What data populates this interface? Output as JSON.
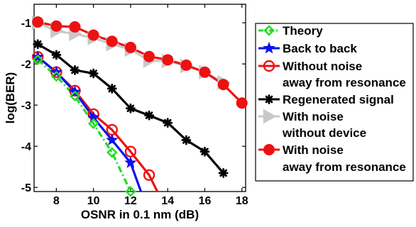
{
  "chart_data": {
    "type": "line",
    "title": "",
    "xlabel": "OSNR in 0.1 nm (dB)",
    "ylabel": "log(BER)",
    "xlim": [
      6.8,
      18.2
    ],
    "ylim": [
      -5.1,
      -0.55
    ],
    "xticks": [
      "8",
      "10",
      "12",
      "14",
      "16",
      "18"
    ],
    "yticks": [
      "-1",
      "-2",
      "-3",
      "-4",
      "-5"
    ],
    "grid": false,
    "legend_position": "right-outside",
    "series": [
      {
        "name": "Theory",
        "color": "#22dd22",
        "marker": "diamond",
        "line": "dashdot",
        "show_markers": true,
        "x": [
          7,
          8,
          9,
          10,
          11,
          12
        ],
        "y": [
          -1.9,
          -2.3,
          -2.78,
          -3.45,
          -4.15,
          -5.1
        ],
        "curve_x": [
          7,
          8,
          9,
          10,
          11,
          12
        ],
        "curve_y": [
          -1.9,
          -2.3,
          -2.78,
          -3.45,
          -4.15,
          -5.1
        ]
      },
      {
        "name": "Back to back",
        "color": "#1010ee",
        "marker": "star",
        "line": "solid",
        "show_markers": true,
        "x": [
          7,
          8,
          9,
          10,
          11,
          12
        ],
        "y": [
          -1.83,
          -2.2,
          -2.68,
          -3.3,
          -3.85,
          -4.4
        ],
        "curve_x": [
          7,
          8,
          9,
          10,
          11,
          12,
          12.6
        ],
        "curve_y": [
          -1.83,
          -2.2,
          -2.68,
          -3.3,
          -3.85,
          -4.4,
          -5.15
        ]
      },
      {
        "name": "Without noise\naway from resonance",
        "color": "#ee1111",
        "marker": "circle-open",
        "line": "solid",
        "show_markers": true,
        "x": [
          7,
          8,
          9,
          10,
          11,
          12,
          13
        ],
        "y": [
          -1.83,
          -2.2,
          -2.65,
          -3.22,
          -3.6,
          -4.13,
          -4.7
        ],
        "curve_x": [
          7,
          8,
          9,
          10,
          11,
          12,
          13,
          13.5
        ],
        "curve_y": [
          -1.83,
          -2.2,
          -2.65,
          -3.22,
          -3.6,
          -4.13,
          -4.7,
          -5.15
        ]
      },
      {
        "name": "Regenerated signal",
        "color": "#000000",
        "marker": "star8",
        "line": "solid",
        "show_markers": true,
        "x": [
          7,
          8,
          9,
          10,
          11,
          12,
          13,
          14,
          15,
          16,
          17
        ],
        "y": [
          -1.52,
          -1.78,
          -2.15,
          -2.23,
          -2.6,
          -3.08,
          -3.25,
          -3.43,
          -3.85,
          -4.13,
          -4.65
        ],
        "curve_x": [
          7,
          8,
          9,
          10,
          11,
          12,
          13,
          14,
          15,
          16,
          17
        ],
        "curve_y": [
          -1.52,
          -1.78,
          -2.15,
          -2.23,
          -2.6,
          -3.08,
          -3.25,
          -3.43,
          -3.85,
          -4.13,
          -4.65
        ]
      },
      {
        "name": "With noise\nwithout device",
        "color": "#c8c8c8",
        "marker": "triangle-right",
        "line": "solid",
        "show_markers": true,
        "x": [
          7,
          8,
          9,
          10,
          11,
          12,
          13,
          14,
          15,
          16,
          17
        ],
        "y": [
          -1.0,
          -1.2,
          -1.27,
          -1.37,
          -1.52,
          -1.65,
          -1.92,
          -1.93,
          -2.05,
          -2.2,
          -2.45
        ],
        "curve_x": [
          7,
          8,
          9,
          10,
          11,
          12,
          13,
          14,
          15,
          16,
          17
        ],
        "curve_y": [
          -1.0,
          -1.2,
          -1.27,
          -1.37,
          -1.52,
          -1.65,
          -1.92,
          -1.93,
          -2.05,
          -2.2,
          -2.45
        ]
      },
      {
        "name": "With noise\naway from resonance",
        "color": "#ee1111",
        "marker": "circle-filled",
        "line": "solid",
        "show_markers": true,
        "x": [
          7,
          8,
          9,
          10,
          11,
          12,
          13,
          14,
          15,
          16,
          17,
          18
        ],
        "y": [
          -0.98,
          -1.08,
          -1.1,
          -1.3,
          -1.45,
          -1.6,
          -1.82,
          -1.9,
          -2.03,
          -2.2,
          -2.5,
          -2.95
        ],
        "curve_x": [
          7,
          8,
          9,
          10,
          11,
          12,
          13,
          14,
          15,
          16,
          17,
          18
        ],
        "curve_y": [
          -0.98,
          -1.08,
          -1.1,
          -1.3,
          -1.45,
          -1.6,
          -1.82,
          -1.9,
          -2.03,
          -2.2,
          -2.5,
          -2.95
        ]
      }
    ]
  }
}
